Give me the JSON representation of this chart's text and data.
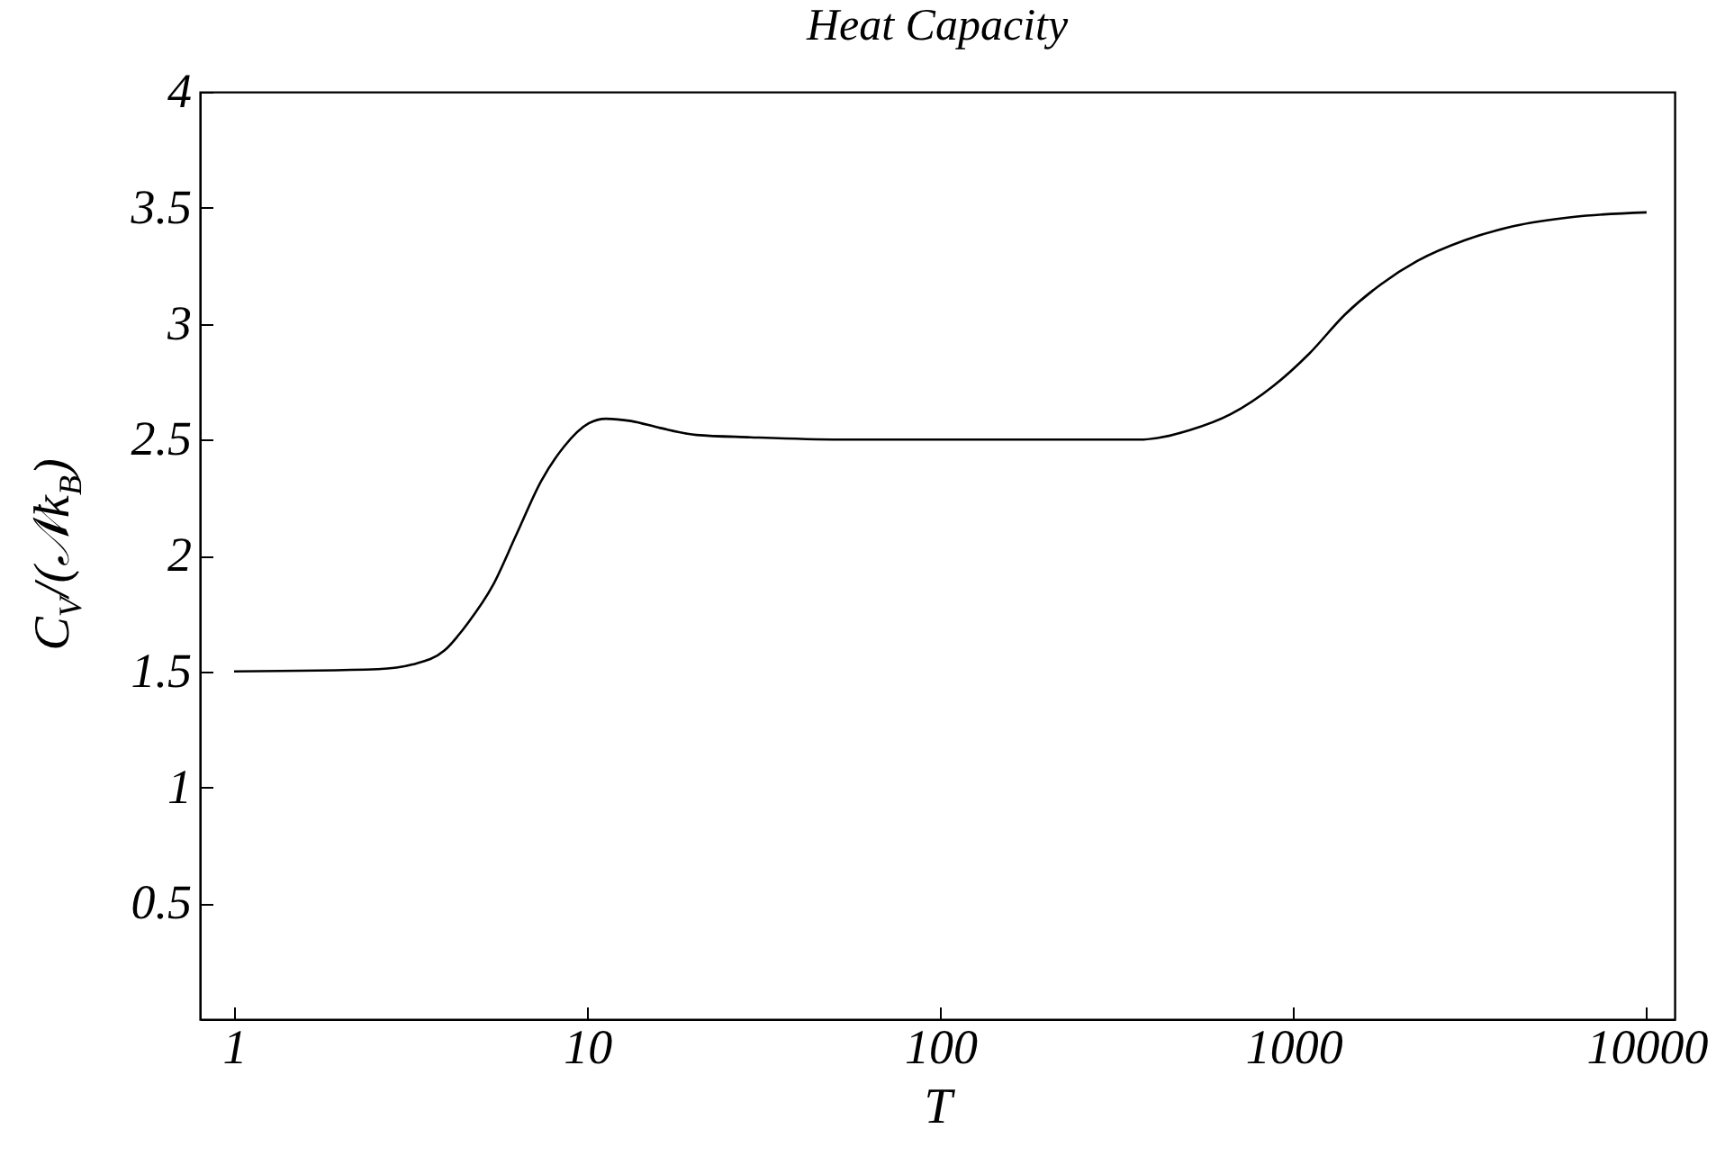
{
  "chart_data": {
    "type": "line",
    "title": "Heat Capacity",
    "xlabel": "T",
    "ylabel": "C$_{V}$/(𝒩k$_{B}$)",
    "log": "x",
    "grid": false,
    "xlim": [
      0.8,
      12000
    ],
    "xticks": [
      1,
      10,
      100,
      1000,
      10000
    ],
    "ylim": [
      0,
      4
    ],
    "yticks": [
      0.5,
      1,
      1.5,
      2,
      2.5,
      3,
      3.5,
      4
    ],
    "x": [
      1,
      2.56,
      3.2,
      3.94,
      4.6,
      5.4,
      6.3,
      7.4,
      8.6,
      10.1,
      11.3,
      13.3,
      16.1,
      20.4,
      29,
      52,
      98,
      200,
      370,
      506,
      665,
      875,
      1107,
      1400,
      1770,
      2240,
      3060,
      4190,
      6190,
      10000
    ],
    "series": [
      {
        "color": "#000000",
        "values": [
          1.5,
          1.51,
          1.53,
          1.59,
          1.71,
          1.87,
          2.09,
          2.32,
          2.47,
          2.57,
          2.59,
          2.58,
          2.55,
          2.52,
          2.51,
          2.5,
          2.5,
          2.5,
          2.5,
          2.54,
          2.61,
          2.73,
          2.87,
          3.04,
          3.17,
          3.27,
          3.36,
          3.42,
          3.46,
          3.48
        ]
      }
    ]
  }
}
